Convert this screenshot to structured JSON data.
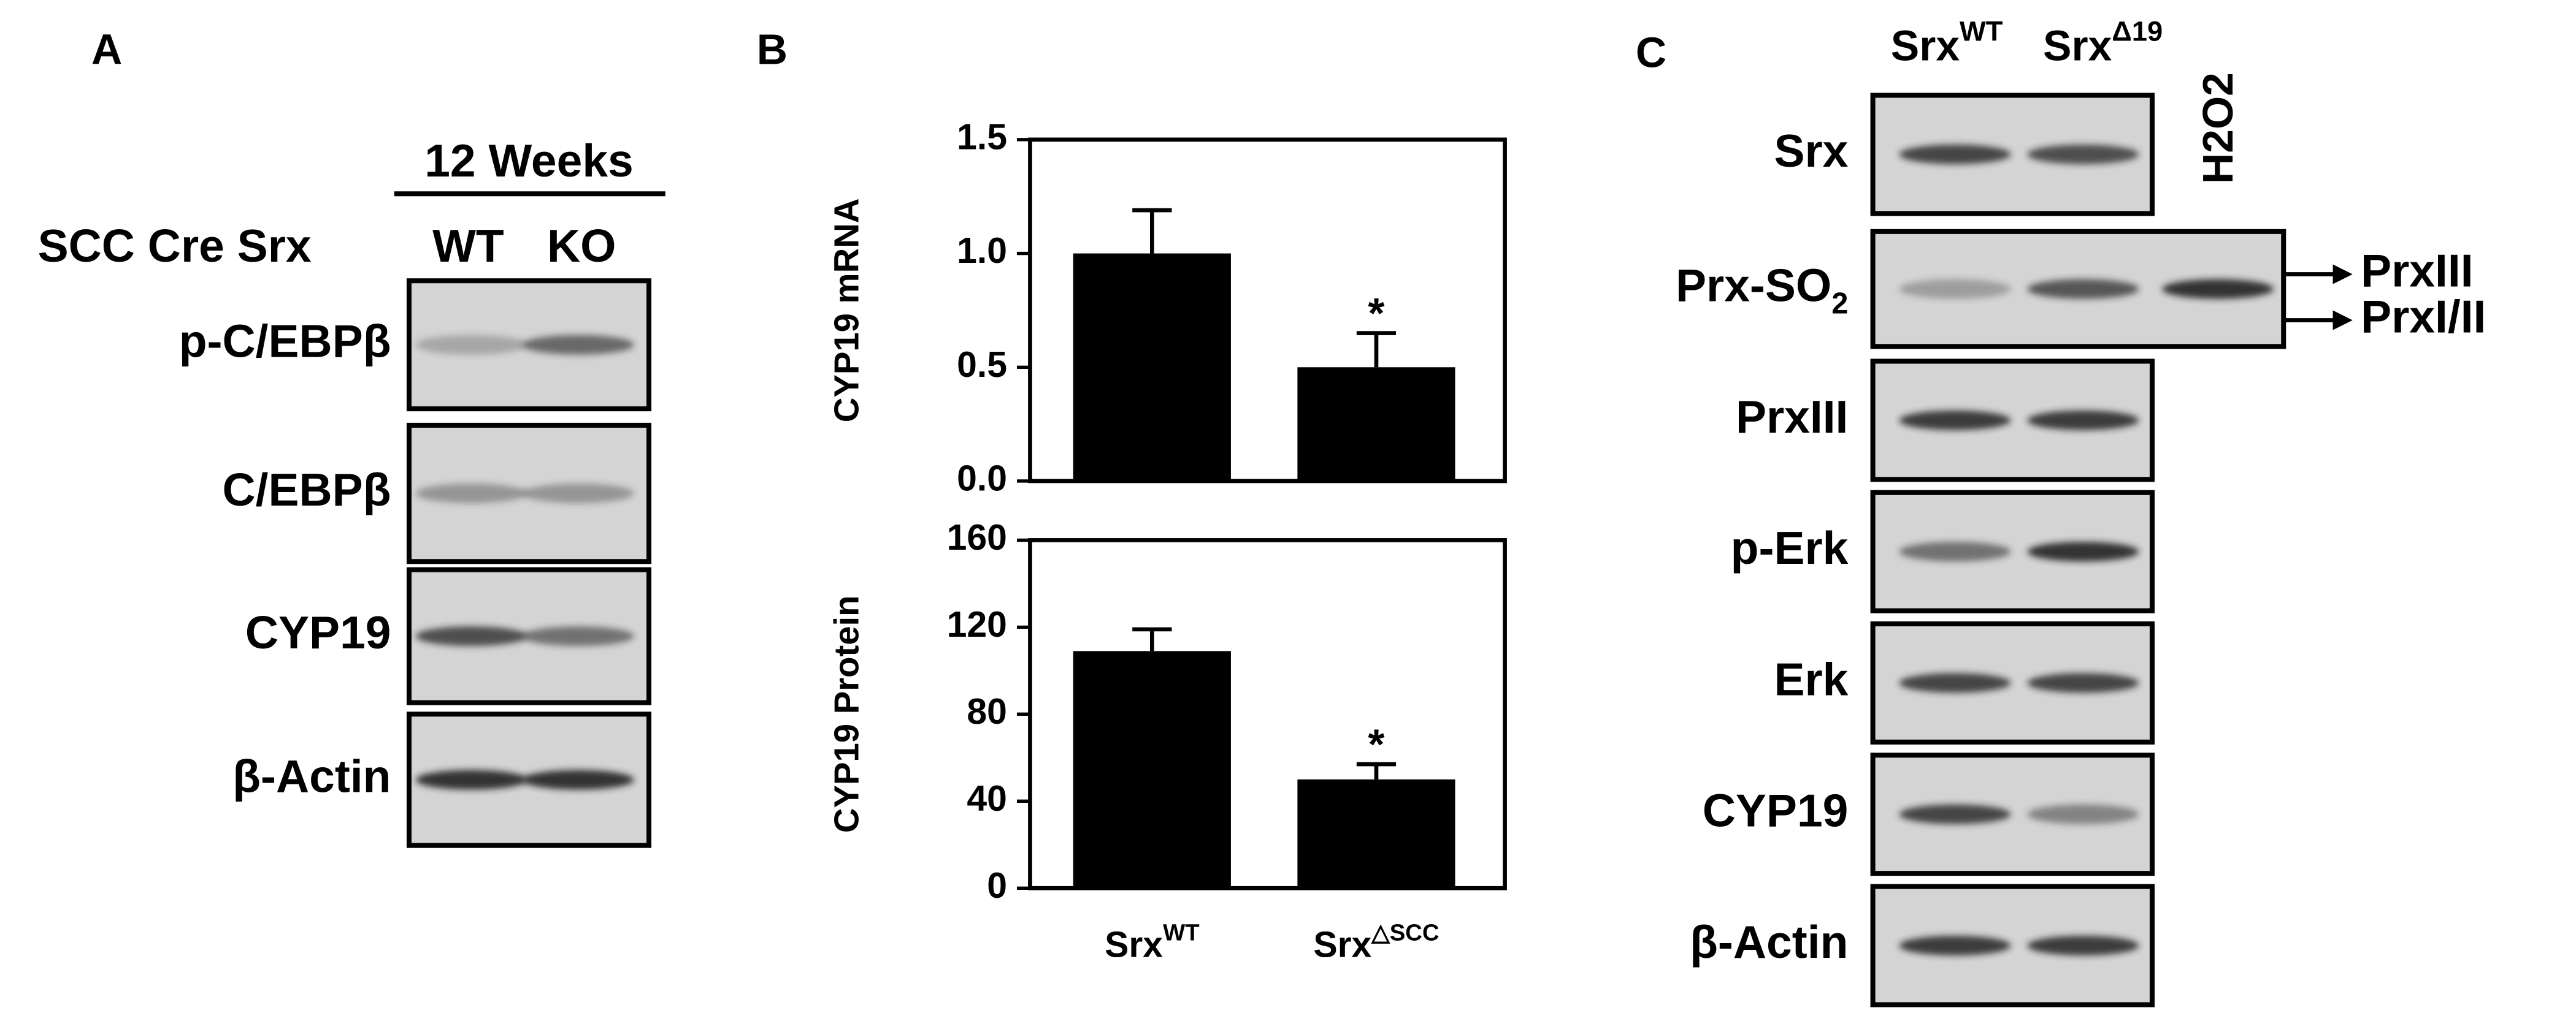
{
  "panel_a": {
    "label": "A",
    "group_header": "12 Weeks",
    "row_header": "SCC Cre Srx",
    "lanes": [
      "WT",
      "KO"
    ],
    "blots": [
      "p-C/EBPβ",
      "C/EBPβ",
      "CYP19",
      "β-Actin"
    ]
  },
  "panel_b": {
    "label": "B"
  },
  "chart_data": [
    {
      "type": "bar",
      "y_label": "CYP19 mRNA",
      "categories": [
        null,
        null
      ],
      "values": [
        1.0,
        0.5
      ],
      "errors": [
        0.19,
        0.15
      ],
      "annotations": [
        null,
        "*"
      ],
      "color": "#000000",
      "ylim": [
        0,
        1.5
      ],
      "yticks": [
        {
          "value": 0,
          "label": "0.0"
        },
        0.5,
        {
          "value": 1,
          "label": "1.0"
        },
        1.5
      ]
    },
    {
      "type": "bar",
      "y_label": "CYP19 Protein",
      "categories": [
        "Srx",
        "Srx"
      ],
      "category_superscripts": [
        "WT",
        "△SCC"
      ],
      "values": [
        109,
        50
      ],
      "errors": [
        10,
        7
      ],
      "annotations": [
        null,
        "*"
      ],
      "color": "#000000",
      "ylim": [
        0,
        160
      ],
      "yticks": [
        0,
        40,
        80,
        120,
        160
      ]
    }
  ],
  "panel_c": {
    "label": "C",
    "lanes": [
      {
        "text": "Srx",
        "sup": "WT"
      },
      {
        "text": "Srx",
        "sup": "Δ19"
      },
      {
        "text": "H2O2"
      }
    ],
    "blots": [
      {
        "text": "Srx"
      },
      {
        "text": "Prx-SO",
        "sub": "2"
      },
      {
        "text": "PrxIII"
      },
      {
        "text": "p-Erk"
      },
      {
        "text": "Erk"
      },
      {
        "text": "CYP19"
      },
      {
        "text": "β-Actin"
      }
    ],
    "arrows": [
      "PrxIII",
      "PrxI/II"
    ]
  }
}
